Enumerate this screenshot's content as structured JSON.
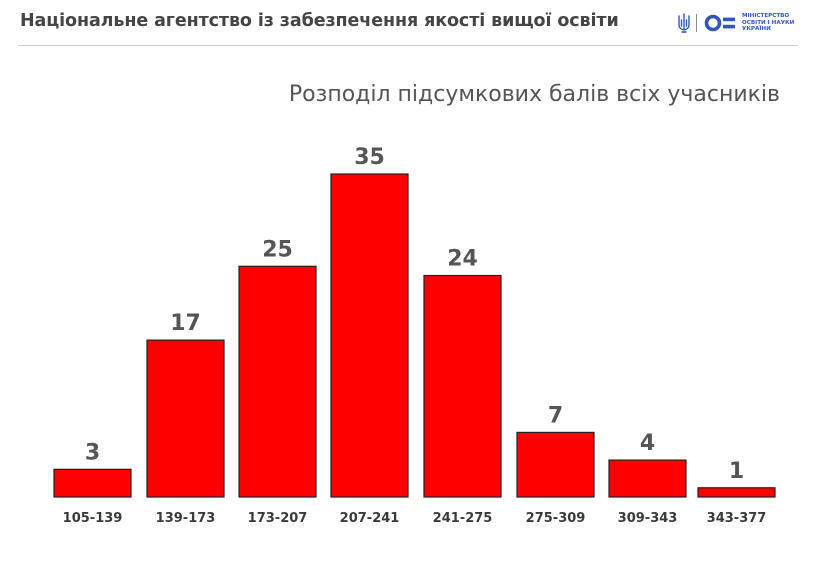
{
  "header": {
    "title": "Національне агентство із забезпечення якості вищої освіти",
    "logo": {
      "emblem_icon": "trident-icon",
      "mon_icon": "mon-logo-icon",
      "lines": [
        "МІНІСТЕРСТВО",
        "ОСВІТИ І НАУКИ",
        "УКРАЇНИ"
      ],
      "accent": "#3057b8"
    }
  },
  "colors": {
    "bar": "#ff0000",
    "bar_stroke": "#222222",
    "value_text": "#555555",
    "tick_text": "#3a3a3a"
  },
  "chart_data": {
    "type": "bar",
    "title": "Розподіл підсумкових балів всіх учасників",
    "categories": [
      "105-139",
      "139-173",
      "173-207",
      "207-241",
      "241-275",
      "275-309",
      "309-343",
      "343-377"
    ],
    "values": [
      3,
      17,
      25,
      35,
      24,
      7,
      4,
      1
    ],
    "xlabel": "",
    "ylabel": "",
    "ylim": [
      0,
      35
    ],
    "grid": false,
    "legend": "none",
    "data_labels": true
  }
}
